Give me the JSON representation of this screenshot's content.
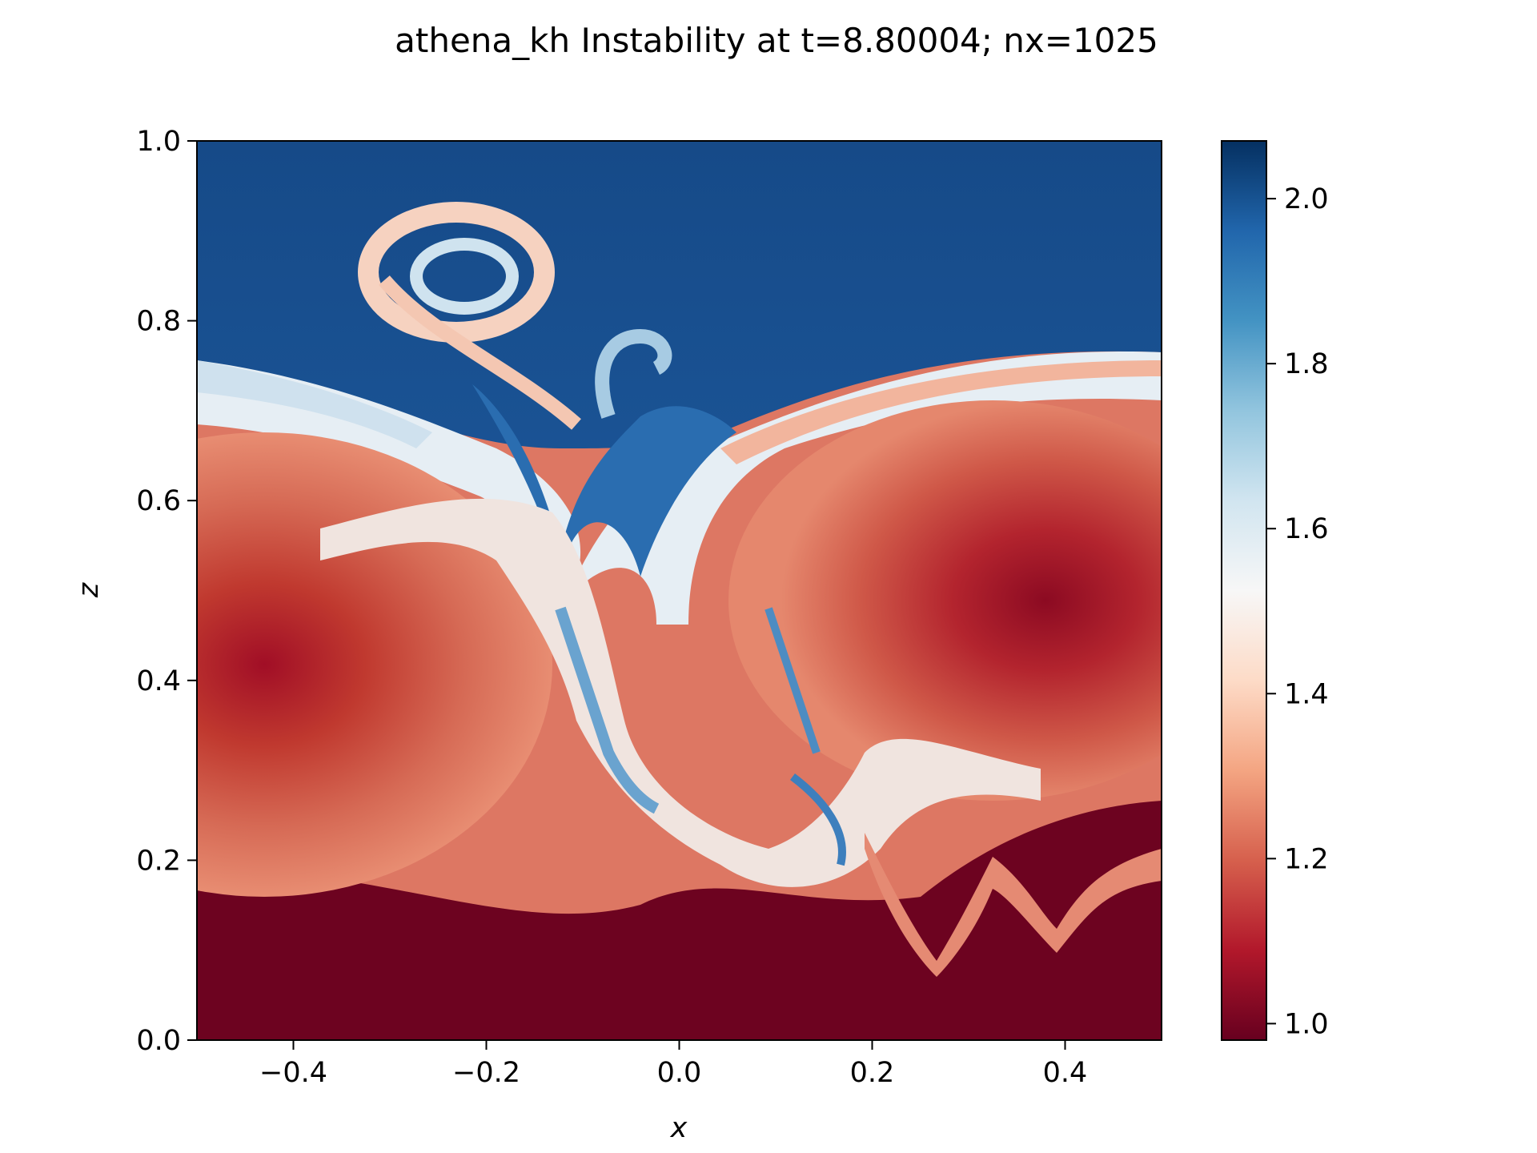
{
  "chart_data": {
    "type": "heatmap",
    "title": "athena_kh Instability at t=8.80004; nx=1025",
    "xlabel": "x",
    "ylabel": "z",
    "xlim": [
      -0.5,
      0.5
    ],
    "ylim": [
      0.0,
      1.0
    ],
    "x_ticks": [
      -0.4,
      -0.2,
      0.0,
      0.2,
      0.4
    ],
    "x_tick_labels": [
      "−0.4",
      "−0.2",
      "0.0",
      "0.2",
      "0.4"
    ],
    "y_ticks": [
      0.0,
      0.2,
      0.4,
      0.6,
      0.8,
      1.0
    ],
    "y_tick_labels": [
      "0.0",
      "0.2",
      "0.4",
      "0.6",
      "0.8",
      "1.0"
    ],
    "colorbar": {
      "colormap": "RdBu",
      "range": [
        0.98,
        2.07
      ],
      "ticks": [
        1.0,
        1.2,
        1.4,
        1.6,
        1.8,
        2.0
      ],
      "tick_labels": [
        "1.0",
        "1.2",
        "1.4",
        "1.6",
        "1.8",
        "2.0"
      ],
      "colors": [
        "#67001f",
        "#b2182b",
        "#d6604d",
        "#f4a582",
        "#fddbc7",
        "#f7f7f7",
        "#d1e5f0",
        "#92c5de",
        "#4393c3",
        "#2166ac",
        "#053061"
      ]
    },
    "field_description": "Density field: low-density (~1.0) fluid in bottom layer and two large vortices centered near (x=-0.45, z=0.44) and (x=0.4, z=0.48); high-density (~2.0) fluid in upper region; mixing layer with rolled-up filaments around x=-0.1 to 0.2."
  }
}
